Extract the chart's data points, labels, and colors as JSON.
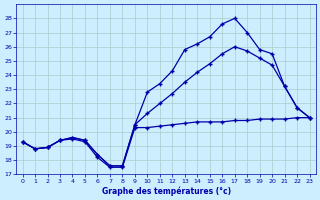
{
  "background_color": "#cceeff",
  "grid_color": "#aacccc",
  "line_color": "#0000aa",
  "xlabel": "Graphe des températures (°c)",
  "ylim": [
    17,
    29
  ],
  "xlim": [
    -0.5,
    23.5
  ],
  "yticks": [
    17,
    18,
    19,
    20,
    21,
    22,
    23,
    24,
    25,
    26,
    27,
    28
  ],
  "xticks": [
    0,
    1,
    2,
    3,
    4,
    5,
    6,
    7,
    8,
    9,
    10,
    11,
    12,
    13,
    14,
    15,
    16,
    17,
    18,
    19,
    20,
    21,
    22,
    23
  ],
  "series1_x": [
    0,
    1,
    2,
    3,
    4,
    5,
    6,
    7,
    8,
    9,
    10,
    11,
    12,
    13,
    14,
    15,
    16,
    17,
    18,
    19,
    20,
    21,
    22,
    23
  ],
  "series1_y": [
    19.3,
    18.8,
    18.9,
    19.4,
    19.5,
    19.3,
    18.2,
    17.5,
    17.5,
    20.3,
    20.3,
    20.4,
    20.5,
    20.6,
    20.7,
    20.7,
    20.7,
    20.8,
    20.8,
    20.9,
    20.9,
    20.9,
    21.0,
    21.0
  ],
  "series2_x": [
    0,
    1,
    2,
    3,
    4,
    5,
    6,
    7,
    8,
    9,
    10,
    11,
    12,
    13,
    14,
    15,
    16,
    17,
    18,
    19,
    20,
    21,
    22,
    23
  ],
  "series2_y": [
    19.3,
    18.8,
    18.9,
    19.4,
    19.6,
    19.4,
    18.4,
    17.6,
    17.6,
    20.5,
    22.8,
    23.4,
    24.3,
    25.8,
    26.2,
    26.7,
    27.6,
    28.0,
    27.0,
    25.8,
    25.5,
    23.2,
    21.7,
    21.0
  ],
  "series3_x": [
    0,
    1,
    2,
    3,
    4,
    5,
    6,
    7,
    8,
    9,
    10,
    11,
    12,
    13,
    14,
    15,
    16,
    17,
    18,
    19,
    20,
    21,
    22,
    23
  ],
  "series3_y": [
    19.3,
    18.8,
    18.9,
    19.4,
    19.6,
    19.4,
    18.4,
    17.6,
    17.6,
    20.5,
    21.3,
    22.0,
    22.7,
    23.5,
    24.2,
    24.8,
    25.5,
    26.0,
    25.7,
    25.2,
    24.7,
    23.2,
    21.7,
    21.0
  ]
}
